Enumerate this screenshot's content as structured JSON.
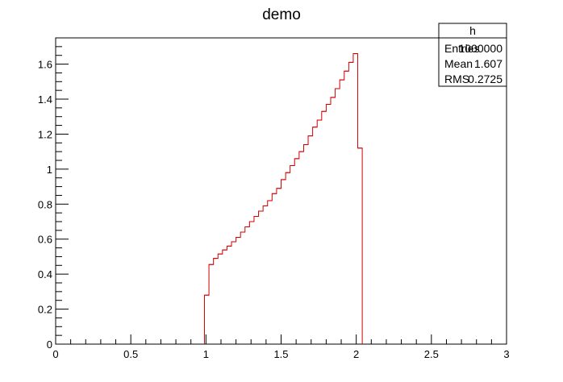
{
  "chart_data": {
    "type": "histogram",
    "title": "demo",
    "xlabel": "",
    "ylabel": "",
    "xlim": [
      0,
      3
    ],
    "ylim": [
      0,
      1.75
    ],
    "x_ticks": [
      "0",
      "0.5",
      "1",
      "1.5",
      "2",
      "2.5",
      "3"
    ],
    "y_ticks": [
      "0",
      "0.2",
      "0.4",
      "0.6",
      "0.8",
      "1",
      "1.2",
      "1.4",
      "1.6"
    ],
    "grid": false,
    "line_color": "#d40000",
    "bin_width": 0.03,
    "bins": [
      {
        "x0": 0.99,
        "y": 0.28
      },
      {
        "x0": 1.02,
        "y": 0.455
      },
      {
        "x0": 1.05,
        "y": 0.49
      },
      {
        "x0": 1.08,
        "y": 0.515
      },
      {
        "x0": 1.11,
        "y": 0.538
      },
      {
        "x0": 1.14,
        "y": 0.56
      },
      {
        "x0": 1.17,
        "y": 0.585
      },
      {
        "x0": 1.2,
        "y": 0.61
      },
      {
        "x0": 1.23,
        "y": 0.64
      },
      {
        "x0": 1.26,
        "y": 0.67
      },
      {
        "x0": 1.29,
        "y": 0.7
      },
      {
        "x0": 1.32,
        "y": 0.73
      },
      {
        "x0": 1.35,
        "y": 0.76
      },
      {
        "x0": 1.38,
        "y": 0.79
      },
      {
        "x0": 1.41,
        "y": 0.82
      },
      {
        "x0": 1.44,
        "y": 0.86
      },
      {
        "x0": 1.47,
        "y": 0.89
      },
      {
        "x0": 1.5,
        "y": 0.94
      },
      {
        "x0": 1.53,
        "y": 0.98
      },
      {
        "x0": 1.56,
        "y": 1.02
      },
      {
        "x0": 1.59,
        "y": 1.06
      },
      {
        "x0": 1.62,
        "y": 1.1
      },
      {
        "x0": 1.65,
        "y": 1.14
      },
      {
        "x0": 1.68,
        "y": 1.19
      },
      {
        "x0": 1.71,
        "y": 1.24
      },
      {
        "x0": 1.74,
        "y": 1.28
      },
      {
        "x0": 1.77,
        "y": 1.33
      },
      {
        "x0": 1.8,
        "y": 1.37
      },
      {
        "x0": 1.83,
        "y": 1.41
      },
      {
        "x0": 1.86,
        "y": 1.46
      },
      {
        "x0": 1.89,
        "y": 1.51
      },
      {
        "x0": 1.92,
        "y": 1.56
      },
      {
        "x0": 1.95,
        "y": 1.61
      },
      {
        "x0": 1.98,
        "y": 1.66
      },
      {
        "x0": 2.01,
        "y": 1.12
      }
    ],
    "stats_box": {
      "name": "h",
      "rows": [
        {
          "label": "Entries",
          "value": "1000000"
        },
        {
          "label": "Mean",
          "value": "1.607"
        },
        {
          "label": "RMS",
          "value": "0.2725"
        }
      ]
    }
  }
}
